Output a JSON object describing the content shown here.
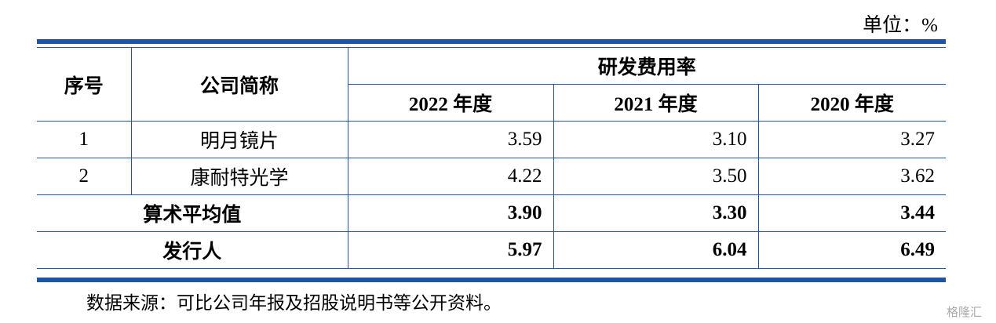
{
  "unit": "单位：%",
  "table": {
    "header": {
      "index": "序号",
      "company": "公司简称",
      "group": "研发费用率",
      "years": [
        "2022 年度",
        "2021 年度",
        "2020 年度"
      ]
    },
    "rows": [
      [
        "1",
        "明月镜片",
        "3.59",
        "3.10",
        "3.27"
      ],
      [
        "2",
        "康耐特光学",
        "4.22",
        "3.50",
        "3.62"
      ]
    ],
    "summary": [
      [
        "算术平均值",
        "3.90",
        "3.30",
        "3.44"
      ],
      [
        "发行人",
        "5.97",
        "6.04",
        "6.49"
      ]
    ]
  },
  "source": "数据来源：可比公司年报及招股说明书等公开资料。",
  "watermark": "格隆汇"
}
